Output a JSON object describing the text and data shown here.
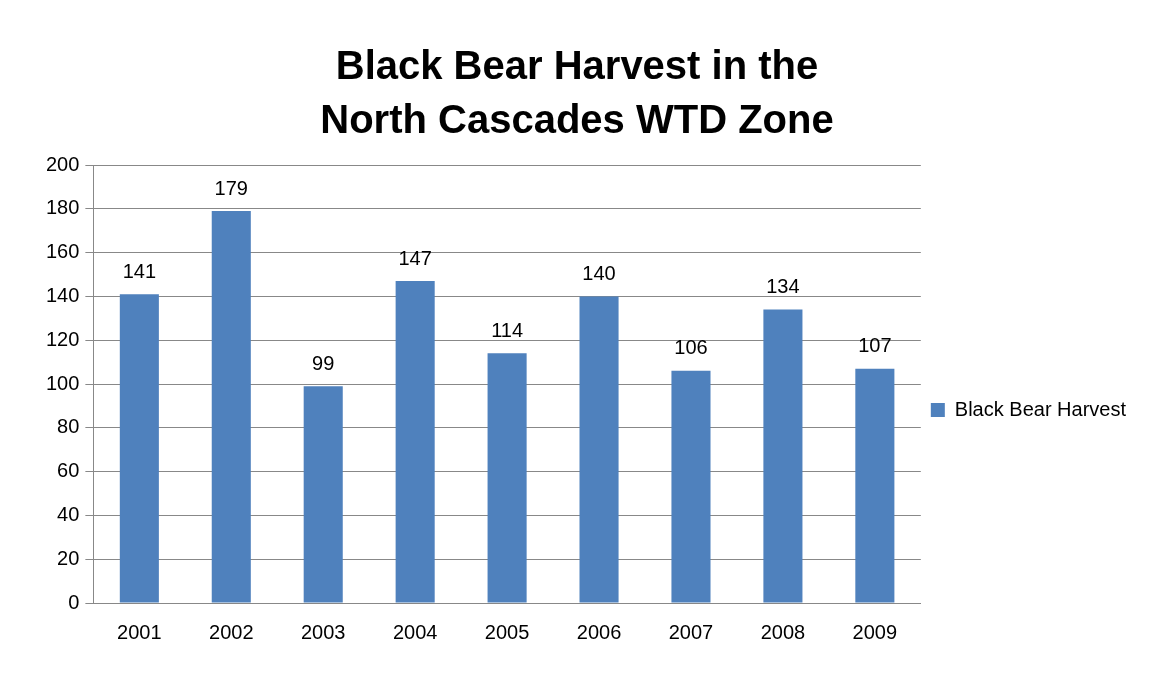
{
  "chart_data": {
    "type": "bar",
    "title": "Black Bear Harvest in the North Cascades WTD Zone",
    "categories": [
      "2001",
      "2002",
      "2003",
      "2004",
      "2005",
      "2006",
      "2007",
      "2008",
      "2009"
    ],
    "series": [
      {
        "name": "Black Bear Harvest",
        "color": "#4f81bd",
        "values": [
          141,
          179,
          99,
          147,
          114,
          140,
          106,
          134,
          107
        ]
      }
    ],
    "ylim": [
      0,
      200
    ],
    "yticks": [
      0,
      20,
      40,
      60,
      80,
      100,
      120,
      140,
      160,
      180,
      200
    ],
    "grid": "y",
    "legend": "right",
    "data_labels": true
  }
}
